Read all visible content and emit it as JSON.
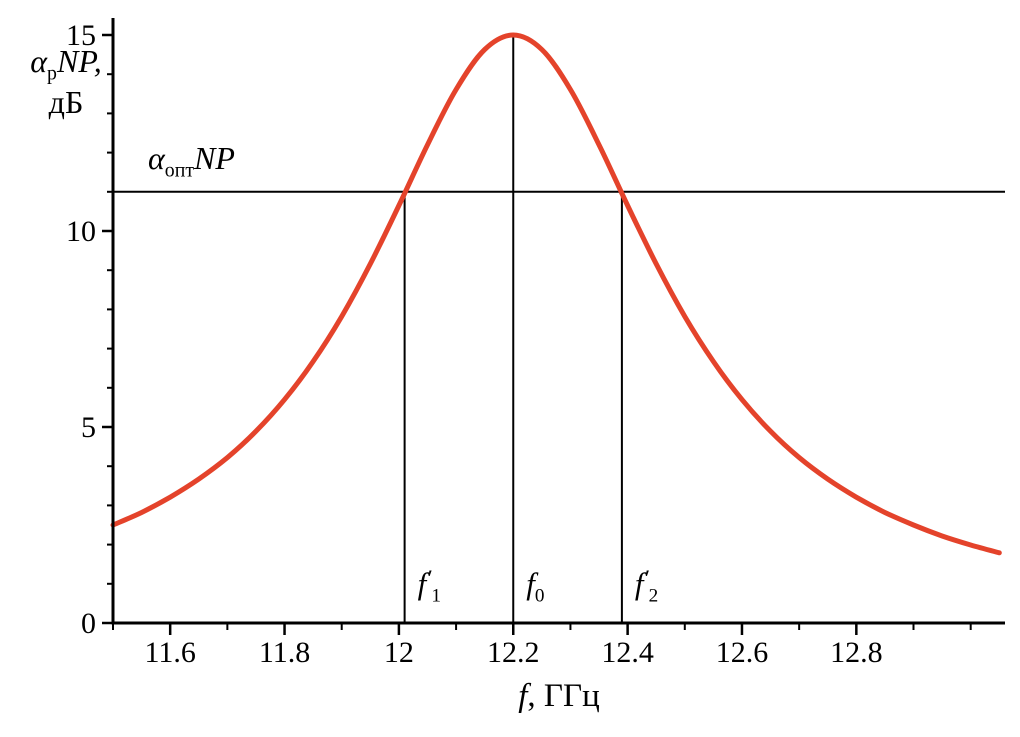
{
  "figure": {
    "background": "#ffffff"
  },
  "chart_data": {
    "type": "line",
    "title": "",
    "x_axis": {
      "title": {
        "f": "f",
        "rest": ", ГГц"
      },
      "range": [
        11.5,
        13.06
      ],
      "ticks": [
        {
          "v": 11.6,
          "label": "11.6"
        },
        {
          "v": 11.8,
          "label": "11.8"
        },
        {
          "v": 12.0,
          "label": "12"
        },
        {
          "v": 12.2,
          "label": "12.2"
        },
        {
          "v": 12.4,
          "label": "12.4"
        },
        {
          "v": 12.6,
          "label": "12.6"
        },
        {
          "v": 12.8,
          "label": "12.8"
        }
      ],
      "minor_ticks": [
        11.5,
        11.7,
        11.9,
        12.1,
        12.3,
        12.5,
        12.7,
        12.9,
        13.0
      ]
    },
    "y_axis": {
      "title": {
        "alpha": "α",
        "sub": "p",
        "rest": "NP,",
        "line2": "дБ"
      },
      "range": [
        0,
        15
      ],
      "ticks": [
        {
          "v": 0,
          "label": "0"
        },
        {
          "v": 5,
          "label": "5"
        },
        {
          "v": 10,
          "label": "10"
        },
        {
          "v": 15,
          "label": "15"
        }
      ],
      "minor_ticks": [
        1,
        2,
        3,
        4,
        6,
        7,
        8,
        9,
        11,
        12,
        13,
        14
      ]
    },
    "threshold": {
      "value_db": 11,
      "label": {
        "alpha": "α",
        "sub": "опт",
        "rest": "NP"
      }
    },
    "markers": [
      {
        "f": 12.01,
        "line_top_db": 11,
        "label": {
          "main": "f",
          "prime": "′",
          "sub": "1"
        }
      },
      {
        "f": 12.2,
        "line_top_db": 15,
        "label": {
          "main": "f",
          "prime": "",
          "sub": "0"
        }
      },
      {
        "f": 12.39,
        "line_top_db": 11,
        "label": {
          "main": "f",
          "prime": "′",
          "sub": "2"
        }
      }
    ],
    "series": [
      {
        "name": "resonance-curve",
        "color": "#e4432b",
        "peak": {
          "f0": 12.2,
          "value_db": 15
        },
        "x": [
          11.5,
          11.55,
          11.6,
          11.65,
          11.7,
          11.75,
          11.8,
          11.85,
          11.9,
          11.95,
          12.0,
          12.05,
          12.1,
          12.15,
          12.2,
          12.25,
          12.3,
          12.35,
          12.4,
          12.45,
          12.5,
          12.55,
          12.6,
          12.65,
          12.7,
          12.75,
          12.8,
          12.85,
          12.9,
          12.95,
          13.0,
          13.05
        ],
        "y": [
          2.5,
          2.82,
          3.21,
          3.67,
          4.22,
          4.89,
          5.7,
          6.67,
          7.82,
          9.16,
          10.65,
          12.2,
          13.61,
          14.63,
          15.0,
          14.63,
          13.61,
          12.2,
          10.65,
          9.16,
          7.82,
          6.67,
          5.7,
          4.89,
          4.22,
          3.67,
          3.21,
          2.82,
          2.5,
          2.22,
          1.99,
          1.79
        ]
      }
    ],
    "colors": {
      "curve": "#e4432b",
      "axis": "#000000",
      "text": "#000000"
    }
  }
}
